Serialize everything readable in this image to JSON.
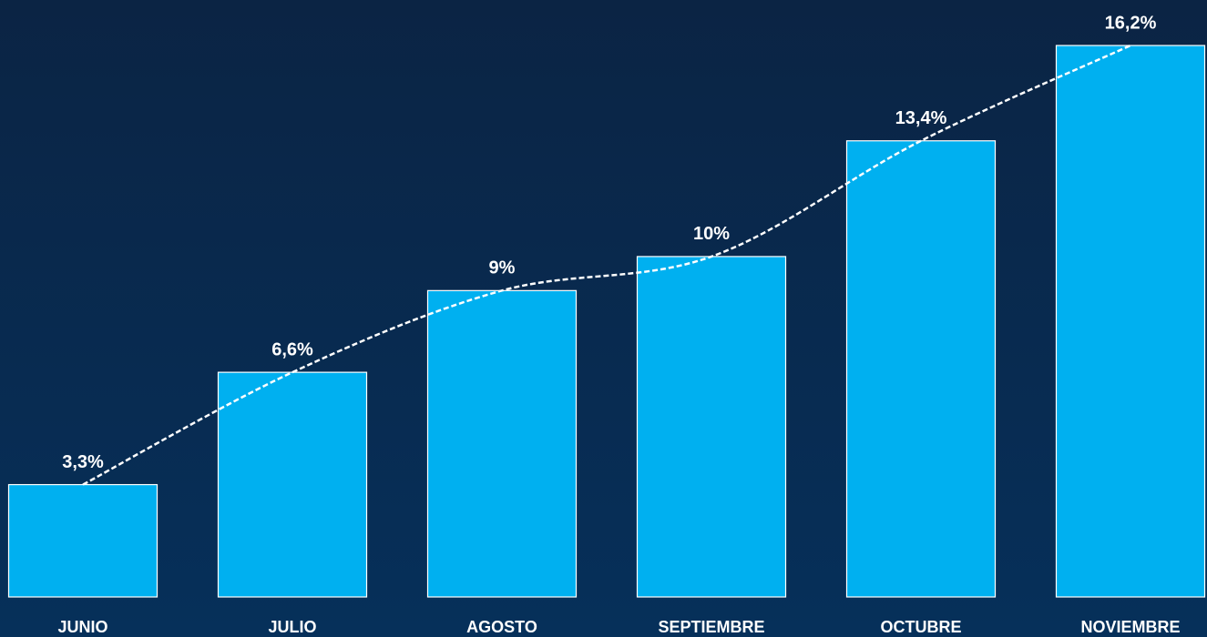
{
  "chart_data": {
    "type": "bar",
    "categories": [
      "JUNIO",
      "JULIO",
      "AGOSTO",
      "SEPTIEMBRE",
      "OCTUBRE",
      "NOVIEMBRE"
    ],
    "values": [
      3.3,
      6.6,
      9,
      10,
      13.4,
      16.2
    ],
    "value_labels": [
      "3,3%",
      "6,6%",
      "9%",
      "10%",
      "13,4%",
      "16,2%"
    ],
    "color": "#00b0f0",
    "trend_line": true
  }
}
